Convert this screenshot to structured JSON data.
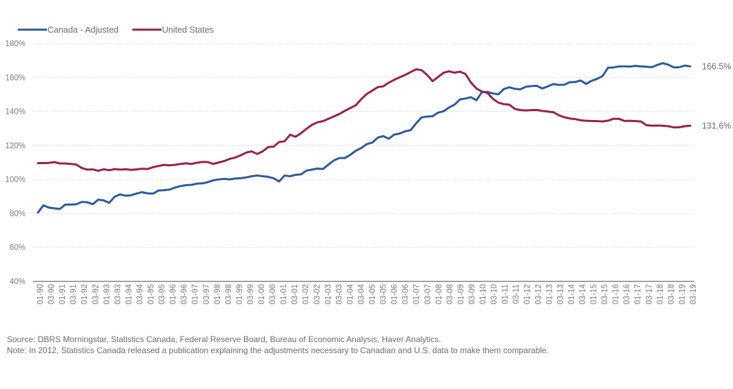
{
  "chart_data": {
    "type": "line",
    "title": "",
    "xlabel": "",
    "ylabel": "",
    "ylim": [
      40,
      180
    ],
    "yticks": [
      40,
      60,
      80,
      100,
      120,
      140,
      160,
      180
    ],
    "ytick_labels": [
      "40%",
      "60%",
      "80%",
      "100%",
      "120%",
      "140%",
      "160%",
      "180%"
    ],
    "x_tick_labels": [
      "01-90",
      "03-90",
      "01-91",
      "03-91",
      "01-92",
      "03-92",
      "01-93",
      "03-93",
      "01-94",
      "03-94",
      "01-95",
      "03-95",
      "01-96",
      "03-96",
      "01-97",
      "03-97",
      "01-98",
      "03-98",
      "01-99",
      "03-99",
      "01-00",
      "03-00",
      "01-01",
      "03-01",
      "01-02",
      "03-02",
      "01-03",
      "03-03",
      "01-04",
      "03-04",
      "01-05",
      "03-05",
      "01-06",
      "03-06",
      "01-07",
      "03-07",
      "01-08",
      "03-08",
      "01-09",
      "03-09",
      "01-10",
      "03-10",
      "01-11",
      "03-11",
      "01-12",
      "03-12",
      "01-13",
      "03-13",
      "01-14",
      "03-14",
      "01-15",
      "03-15",
      "01-16",
      "03-16",
      "01-17",
      "03-17",
      "01-18",
      "03-18",
      "01-19",
      "03-19"
    ],
    "grid": "horizontal",
    "legend_position": "top-left",
    "series": [
      {
        "name": "Canada - Adjusted",
        "color": "#2e5a9c",
        "end_label": "166.5%",
        "values": [
          80.5,
          84.7,
          83.4,
          83.0,
          82.6,
          85.2,
          85.2,
          85.4,
          86.8,
          86.6,
          85.4,
          88.1,
          87.7,
          86.2,
          89.8,
          91.2,
          90.4,
          90.7,
          91.7,
          92.5,
          91.8,
          91.6,
          93.5,
          93.7,
          94.0,
          95.2,
          96.1,
          96.6,
          96.8,
          97.5,
          97.7,
          98.4,
          99.5,
          100.0,
          100.3,
          100.0,
          100.6,
          100.7,
          101.2,
          101.9,
          102.3,
          101.9,
          101.5,
          100.7,
          98.8,
          102.3,
          101.9,
          102.7,
          103.0,
          105.2,
          105.8,
          106.4,
          106.1,
          108.7,
          111.2,
          112.6,
          112.6,
          114.5,
          116.9,
          118.5,
          120.8,
          121.7,
          124.6,
          125.5,
          123.9,
          126.4,
          127.0,
          128.3,
          129.0,
          133.0,
          136.5,
          137.0,
          137.2,
          139.3,
          140.1,
          142.3,
          144.0,
          147.1,
          147.6,
          148.4,
          146.6,
          151.4,
          151.5,
          150.6,
          150.1,
          153.2,
          154.2,
          153.3,
          153.0,
          154.5,
          154.9,
          155.1,
          153.5,
          154.7,
          156.1,
          155.6,
          155.7,
          157.2,
          157.3,
          158.2,
          156.2,
          158.0,
          159.2,
          160.8,
          165.7,
          165.9,
          166.5,
          166.5,
          166.4,
          166.8,
          166.5,
          166.3,
          166.0,
          167.4,
          168.4,
          167.5,
          165.9,
          166.0,
          167.0,
          166.5
        ]
      },
      {
        "name": "United States",
        "color": "#9c1f4a",
        "end_label": "131.6%",
        "values": [
          109.6,
          109.6,
          109.7,
          110.2,
          109.4,
          109.4,
          109.1,
          108.8,
          106.7,
          105.8,
          105.9,
          105.1,
          106.0,
          105.4,
          106.1,
          105.8,
          106.0,
          105.6,
          105.9,
          106.3,
          106.1,
          107.2,
          107.9,
          108.6,
          108.3,
          108.6,
          109.1,
          109.5,
          109.1,
          109.8,
          110.3,
          110.2,
          109.1,
          110.0,
          110.8,
          112.1,
          112.9,
          114.2,
          115.8,
          116.5,
          115.0,
          116.5,
          119.0,
          119.3,
          122.0,
          122.4,
          126.3,
          125.1,
          127.2,
          129.8,
          132.1,
          133.6,
          134.3,
          135.7,
          137.1,
          138.5,
          140.4,
          142.0,
          143.7,
          147.3,
          150.3,
          152.3,
          154.3,
          154.8,
          156.9,
          158.6,
          160.1,
          161.5,
          163.2,
          164.8,
          164.3,
          161.5,
          157.8,
          160.3,
          162.8,
          163.6,
          162.8,
          163.4,
          162.0,
          157.0,
          153.5,
          151.7,
          150.9,
          147.4,
          145.2,
          144.3,
          144.0,
          141.5,
          140.8,
          140.6,
          140.8,
          140.9,
          140.3,
          139.9,
          139.6,
          137.8,
          136.6,
          135.9,
          135.5,
          134.8,
          134.5,
          134.4,
          134.3,
          134.1,
          134.6,
          135.7,
          135.7,
          134.4,
          134.5,
          134.3,
          134.1,
          131.9,
          131.6,
          131.7,
          131.6,
          131.3,
          130.6,
          130.7,
          131.3,
          131.6
        ]
      }
    ]
  },
  "notes": {
    "source": "Source: DBRS Morningstar, Statistics Canada, Federal Reserve Board, Bureau of Economic Analysis, Haver Analytics.",
    "note": "Note: In 2012, Statistics Canada released a publication explaining the adjustments necessary to Canadian and U.S. data to make them comparable."
  }
}
